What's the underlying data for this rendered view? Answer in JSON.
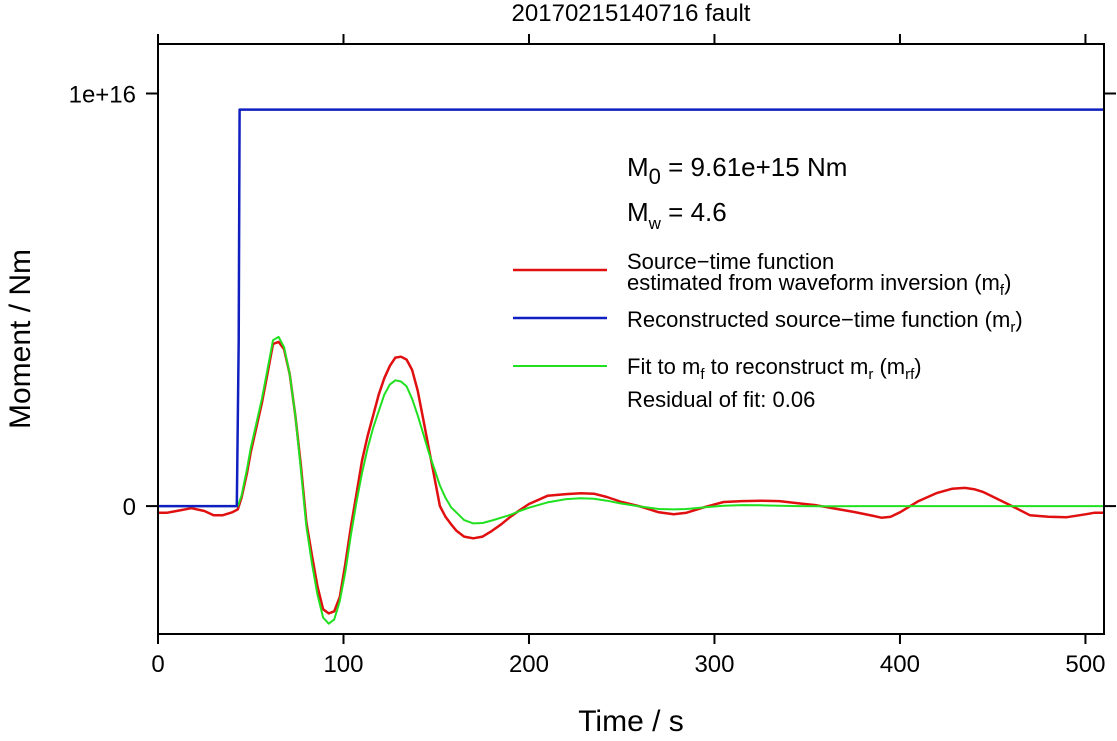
{
  "chart_data": {
    "type": "line",
    "title": "20170215140716 fault",
    "xlabel": "Time / s",
    "ylabel": "Moment / Nm",
    "xlim": [
      0,
      510
    ],
    "ylim": [
      -3100000000000000.0,
      1.12e+16
    ],
    "x_ticks": [
      0,
      100,
      200,
      300,
      400,
      500
    ],
    "x_tick_labels": [
      "0",
      "100",
      "200",
      "300",
      "400",
      "500"
    ],
    "y_ticks": [
      0,
      1e+16
    ],
    "y_tick_labels": [
      "0",
      "1e+16"
    ],
    "grid": false,
    "legend_position": "right",
    "annotations": {
      "m0_prefix": "M",
      "m0_sub": "0",
      "m0_value": " = 9.61e+15 Nm",
      "mw_prefix": "M",
      "mw_sub": "w",
      "mw_value": " = 4.6",
      "residual": "Residual of fit: 0.06"
    },
    "legend": [
      {
        "line1": "Source−time function",
        "line2a": "estimated from waveform inversion (m",
        "line2sub": "f",
        "line2b": ")",
        "color": "#e01010"
      },
      {
        "line1a": "Reconstructed source−time function (m",
        "line1sub": "r",
        "line1b": ")",
        "color": "#1020c0"
      },
      {
        "line1a": "Fit to m",
        "line1sub": "f",
        "line1b": " to reconstruct m",
        "line1sub2": "r",
        "line1c": " (m",
        "line1sub3": "rf",
        "line1d": ")",
        "color": "#20e020"
      }
    ],
    "series": [
      {
        "color": "#e01010",
        "x": [
          0,
          5,
          10,
          18,
          25,
          30,
          35,
          40,
          43,
          45,
          48,
          50,
          53,
          56,
          59,
          62,
          65,
          68,
          71,
          74,
          77,
          80,
          83,
          86,
          89,
          92,
          95,
          98,
          101,
          104,
          107,
          110,
          113,
          116,
          119,
          122,
          125,
          128,
          131,
          134,
          137,
          140,
          143,
          146,
          149,
          152,
          155,
          158,
          161,
          165,
          170,
          175,
          180,
          185,
          190,
          195,
          200,
          210,
          220,
          228,
          235,
          242,
          250,
          260,
          270,
          278,
          285,
          295,
          305,
          315,
          325,
          335,
          345,
          355,
          365,
          375,
          385,
          390,
          395,
          400,
          410,
          420,
          428,
          435,
          440,
          445,
          450,
          460,
          470,
          480,
          490,
          500,
          505,
          510
        ],
        "y": [
          -160000000000000.0,
          -160000000000000.0,
          -120000000000000.0,
          -50000000000000.0,
          -120000000000000.0,
          -220000000000000.0,
          -220000000000000.0,
          -150000000000000.0,
          -80000000000000.0,
          200000000000000.0,
          800000000000000.0,
          1300000000000000.0,
          1900000000000000.0,
          2500000000000000.0,
          3200000000000000.0,
          3930000000000000.0,
          3980000000000000.0,
          3800000000000000.0,
          3200000000000000.0,
          2200000000000000.0,
          1000000000000000.0,
          -400000000000000.0,
          -1200000000000000.0,
          -1950000000000000.0,
          -2500000000000000.0,
          -2600000000000000.0,
          -2550000000000000.0,
          -2200000000000000.0,
          -1400000000000000.0,
          -500000000000000.0,
          300000000000000.0,
          1100000000000000.0,
          1700000000000000.0,
          2200000000000000.0,
          2700000000000000.0,
          3100000000000000.0,
          3400000000000000.0,
          3600000000000000.0,
          3620000000000000.0,
          3550000000000000.0,
          3300000000000000.0,
          2800000000000000.0,
          2100000000000000.0,
          1400000000000000.0,
          700000000000000.0,
          0,
          -260000000000000.0,
          -440000000000000.0,
          -600000000000000.0,
          -740000000000000.0,
          -780000000000000.0,
          -740000000000000.0,
          -600000000000000.0,
          -440000000000000.0,
          -260000000000000.0,
          -100000000000000.0,
          50000000000000.0,
          250000000000000.0,
          290000000000000.0,
          310000000000000.0,
          300000000000000.0,
          220000000000000.0,
          100000000000000.0,
          -10000000000000.0,
          -150000000000000.0,
          -200000000000000.0,
          -160000000000000.0,
          -20000000000000.0,
          100000000000000.0,
          120000000000000.0,
          130000000000000.0,
          120000000000000.0,
          70000000000000.0,
          20000000000000.0,
          -60000000000000.0,
          -140000000000000.0,
          -230000000000000.0,
          -280000000000000.0,
          -260000000000000.0,
          -150000000000000.0,
          120000000000000.0,
          320000000000000.0,
          420000000000000.0,
          440000000000000.0,
          410000000000000.0,
          340000000000000.0,
          230000000000000.0,
          10000000000000.0,
          -220000000000000.0,
          -260000000000000.0,
          -270000000000000.0,
          -200000000000000.0,
          -160000000000000.0,
          -160000000000000.0
        ]
      },
      {
        "color": "#1020c0",
        "x": [
          0,
          42.5,
          43.5,
          44,
          510
        ],
        "y": [
          0,
          0,
          4000000000000000.0,
          9610000000000000.0,
          9610000000000000.0
        ]
      },
      {
        "color": "#20e020",
        "x": [
          0,
          43,
          45,
          48,
          50,
          53,
          56,
          59,
          62,
          65,
          68,
          71,
          74,
          77,
          80,
          83,
          86,
          89,
          92,
          95,
          98,
          101,
          104,
          107,
          110,
          113,
          116,
          119,
          122,
          125,
          128,
          131,
          134,
          137,
          140,
          143,
          146,
          149,
          152,
          155,
          158,
          161,
          165,
          170,
          175,
          180,
          185,
          190,
          195,
          200,
          210,
          220,
          228,
          235,
          242,
          250,
          260,
          270,
          278,
          285,
          295,
          305,
          315,
          325,
          335,
          345,
          355,
          365,
          380,
          400,
          450,
          510
        ],
        "y": [
          0,
          0,
          250000000000000.0,
          900000000000000.0,
          1400000000000000.0,
          2000000000000000.0,
          2600000000000000.0,
          3300000000000000.0,
          4020000000000000.0,
          4100000000000000.0,
          3850000000000000.0,
          3200000000000000.0,
          2200000000000000.0,
          900000000000000.0,
          -500000000000000.0,
          -1400000000000000.0,
          -2150000000000000.0,
          -2700000000000000.0,
          -2850000000000000.0,
          -2750000000000000.0,
          -2300000000000000.0,
          -1600000000000000.0,
          -700000000000000.0,
          100000000000000.0,
          800000000000000.0,
          1400000000000000.0,
          1900000000000000.0,
          2300000000000000.0,
          2700000000000000.0,
          2950000000000000.0,
          3050000000000000.0,
          3020000000000000.0,
          2900000000000000.0,
          2600000000000000.0,
          2200000000000000.0,
          1750000000000000.0,
          1300000000000000.0,
          900000000000000.0,
          500000000000000.0,
          200000000000000.0,
          -30000000000000.0,
          -160000000000000.0,
          -340000000000000.0,
          -420000000000000.0,
          -410000000000000.0,
          -350000000000000.0,
          -280000000000000.0,
          -210000000000000.0,
          -120000000000000.0,
          -40000000000000.0,
          90000000000000.0,
          170000000000000.0,
          190000000000000.0,
          180000000000000.0,
          130000000000000.0,
          60000000000000.0,
          -10000000000000.0,
          -70000000000000.0,
          -80000000000000.0,
          -70000000000000.0,
          -30000000000000.0,
          10000000000000.0,
          25000000000000.0,
          20000000000000.0,
          10000000000000.0,
          0,
          -5000000000000.0,
          -5000000000000.0,
          0,
          0,
          0,
          0
        ]
      }
    ]
  }
}
